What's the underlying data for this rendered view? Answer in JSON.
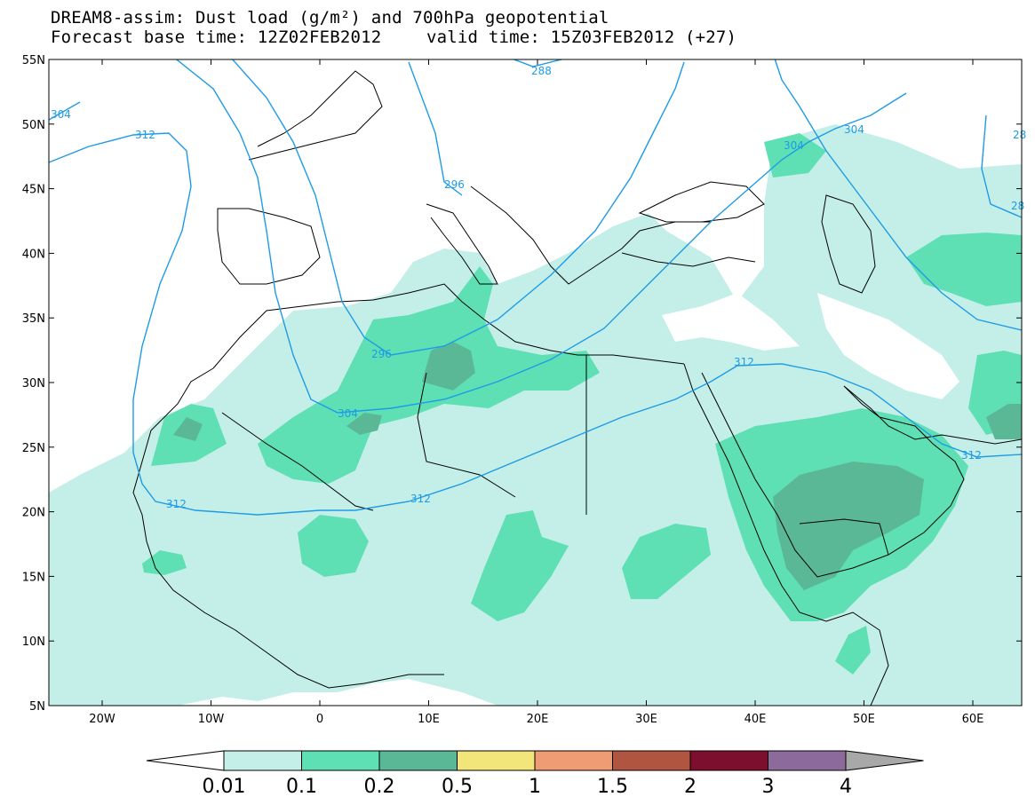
{
  "header": {
    "title_line1": "DREAM8-assim: Dust load (g/m²) and 700hPa geopotential",
    "base_time_label": "Forecast base time: 12Z02FEB2012",
    "valid_time_label": "valid time: 15Z03FEB2012 (+27)"
  },
  "map": {
    "lat_labels": [
      "55N",
      "50N",
      "45N",
      "40N",
      "35N",
      "30N",
      "25N",
      "20N",
      "15N",
      "10N",
      "5N"
    ],
    "lon_labels": [
      "20W",
      "10W",
      "0",
      "10E",
      "20E",
      "30E",
      "40E",
      "50E",
      "60E"
    ],
    "contour_labels": [
      "288",
      "304",
      "304",
      "312",
      "296",
      "304",
      "312",
      "312",
      "312",
      "296",
      "304",
      "28",
      "28"
    ],
    "contour_color": "#1e9be6",
    "coastline_color": "#000000"
  },
  "legend": {
    "labels": [
      "0.01",
      "0.1",
      "0.2",
      "0.5",
      "1",
      "1.5",
      "2",
      "3",
      "4"
    ],
    "colors": [
      "#c4efe8",
      "#5ee0b4",
      "#5bb896",
      "#f2e57a",
      "#ef9b73",
      "#b05540",
      "#7c0f2e",
      "#8c6b9c",
      "#a8a8a8"
    ],
    "below_color": "#ffffff"
  },
  "dust_colors": {
    "c1": "#c4efe8",
    "c2": "#5ee0b4",
    "c3": "#5bb896"
  }
}
